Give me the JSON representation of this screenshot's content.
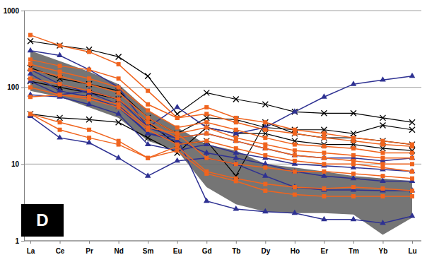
{
  "chart_data": {
    "type": "line",
    "annotation": "D",
    "categories": [
      "La",
      "Ce",
      "Pr",
      "Nd",
      "Sm",
      "Eu",
      "Gd",
      "Tb",
      "Dy",
      "Ho",
      "Er",
      "Tm",
      "Yb",
      "Lu"
    ],
    "log": "y",
    "grid": true,
    "ylim": [
      1,
      1000
    ],
    "yticks": [
      1,
      10,
      100,
      1000
    ],
    "series": [
      {
        "type": "area",
        "color": "#666666",
        "values": [
          300,
          220,
          160,
          110,
          50,
          30,
          18,
          15,
          10,
          9,
          8,
          7,
          6.5,
          6
        ],
        "lower": [
          90,
          75,
          55,
          40,
          20,
          15,
          5,
          3,
          2.4,
          2.3,
          2.3,
          2.2,
          1.2,
          2
        ]
      },
      {
        "color": "#000000",
        "marker": "x",
        "values": [
          400,
          350,
          310,
          250,
          140,
          45,
          85,
          70,
          60,
          48,
          46,
          46,
          40,
          35
        ]
      },
      {
        "color": "#000000",
        "marker": "x",
        "values": [
          45,
          40,
          38,
          35,
          22,
          14,
          30,
          25,
          25,
          20,
          18,
          18,
          16,
          15
        ]
      },
      {
        "color": "#000000",
        "marker": "x",
        "values": [
          120,
          100,
          85,
          70,
          35,
          18,
          20,
          7,
          35,
          25,
          22,
          22,
          20,
          18
        ]
      },
      {
        "color": "#000000",
        "marker": "x",
        "values": [
          180,
          130,
          110,
          90,
          40,
          25,
          40,
          38,
          30,
          28,
          28,
          25,
          32,
          28
        ]
      },
      {
        "color": "#2e3192",
        "marker": "triangle",
        "values": [
          300,
          260,
          170,
          100,
          30,
          55,
          30,
          25,
          30,
          48,
          75,
          110,
          125,
          140
        ]
      },
      {
        "color": "#2e3192",
        "marker": "triangle",
        "values": [
          170,
          110,
          85,
          60,
          25,
          22,
          3.3,
          2.6,
          2.4,
          2.3,
          1.9,
          1.9,
          1.7,
          2.1
        ]
      },
      {
        "color": "#2e3192",
        "marker": "triangle",
        "values": [
          42,
          22,
          19,
          12,
          7,
          11,
          12,
          10,
          7,
          5,
          4.6,
          4.6,
          4.5,
          4.5
        ]
      },
      {
        "color": "#2e3192",
        "marker": "triangle",
        "values": [
          150,
          90,
          75,
          55,
          25,
          20,
          14,
          12,
          10,
          8,
          7,
          6.5,
          6,
          6
        ]
      },
      {
        "color": "#2e3192",
        "marker": "triangle",
        "values": [
          80,
          75,
          60,
          45,
          18,
          15,
          18,
          14,
          12,
          10,
          9.5,
          9,
          8.5,
          8
        ]
      },
      {
        "color": "#2e3192",
        "marker": "triangle",
        "values": [
          120,
          80,
          90,
          70,
          30,
          22,
          25,
          20,
          16,
          13,
          12,
          12,
          11,
          12
        ]
      },
      {
        "color": "#f0641e",
        "marker": "square",
        "values": [
          480,
          350,
          290,
          200,
          90,
          40,
          55,
          40,
          35,
          28,
          25,
          22,
          20,
          18
        ]
      },
      {
        "color": "#f0641e",
        "marker": "square",
        "values": [
          230,
          190,
          170,
          130,
          60,
          40,
          45,
          35,
          28,
          25,
          22,
          20,
          18,
          17
        ]
      },
      {
        "color": "#f0641e",
        "marker": "square",
        "values": [
          200,
          160,
          130,
          100,
          50,
          30,
          35,
          28,
          22,
          18,
          17,
          16,
          14,
          14
        ]
      },
      {
        "color": "#f0641e",
        "marker": "square",
        "values": [
          170,
          140,
          110,
          85,
          40,
          25,
          30,
          22,
          18,
          15,
          14,
          13,
          12,
          12
        ]
      },
      {
        "color": "#f0641e",
        "marker": "square",
        "values": [
          130,
          110,
          90,
          70,
          35,
          22,
          25,
          20,
          16,
          13,
          12,
          11,
          10,
          10
        ]
      },
      {
        "color": "#f0641e",
        "marker": "square",
        "values": [
          100,
          80,
          70,
          55,
          28,
          18,
          20,
          16,
          13,
          11,
          10,
          10,
          9,
          8
        ]
      },
      {
        "color": "#f0641e",
        "marker": "square",
        "values": [
          45,
          35,
          28,
          20,
          12,
          15,
          7.5,
          6,
          4.5,
          4,
          3.8,
          3.8,
          3.8,
          3.8
        ]
      },
      {
        "color": "#f0641e",
        "marker": "square",
        "values": [
          45,
          28,
          22,
          18,
          12,
          17,
          8,
          6.5,
          5.5,
          5,
          4.8,
          5,
          4.8,
          4.5
        ]
      },
      {
        "color": "#f0641e",
        "marker": "square",
        "values": [
          75,
          80,
          75,
          60,
          30,
          25,
          12,
          10,
          9,
          8,
          8,
          7.5,
          7,
          6.5
        ]
      }
    ]
  }
}
